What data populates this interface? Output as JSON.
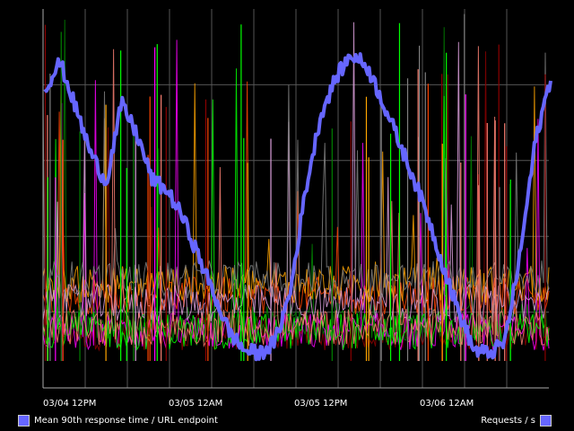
{
  "chart_data": {
    "type": "line",
    "title": "",
    "xlabel": "",
    "ylabel": "",
    "background": "#000000",
    "grid": true,
    "x_tick_labels": [
      "03/04 12PM",
      "03/05 12AM",
      "03/05 12PM",
      "03/06 12AM"
    ],
    "series": [
      {
        "name": "Mean 90th response time / URL endpoint",
        "color": "#6666ff",
        "values": [
          0.79,
          0.86,
          0.74,
          0.62,
          0.54,
          0.75,
          0.67,
          0.55,
          0.52,
          0.45,
          0.35,
          0.25,
          0.15,
          0.1,
          0.09,
          0.12,
          0.25,
          0.52,
          0.72,
          0.82,
          0.88,
          0.85,
          0.76,
          0.66,
          0.56,
          0.45,
          0.32,
          0.2,
          0.1,
          0.09,
          0.12,
          0.35,
          0.65,
          0.82
        ]
      },
      {
        "name": "Requests / s",
        "color": "#6666ff"
      }
    ],
    "noise_series_colors": [
      "#8b0000",
      "#008000",
      "#ff4500",
      "#ffa500",
      "#ff00ff",
      "#00ff00",
      "#dda0dd",
      "#808080",
      "#fa8072"
    ]
  },
  "legend": {
    "left_label": "Mean 90th response time / URL endpoint",
    "right_label": "Requests / s"
  }
}
